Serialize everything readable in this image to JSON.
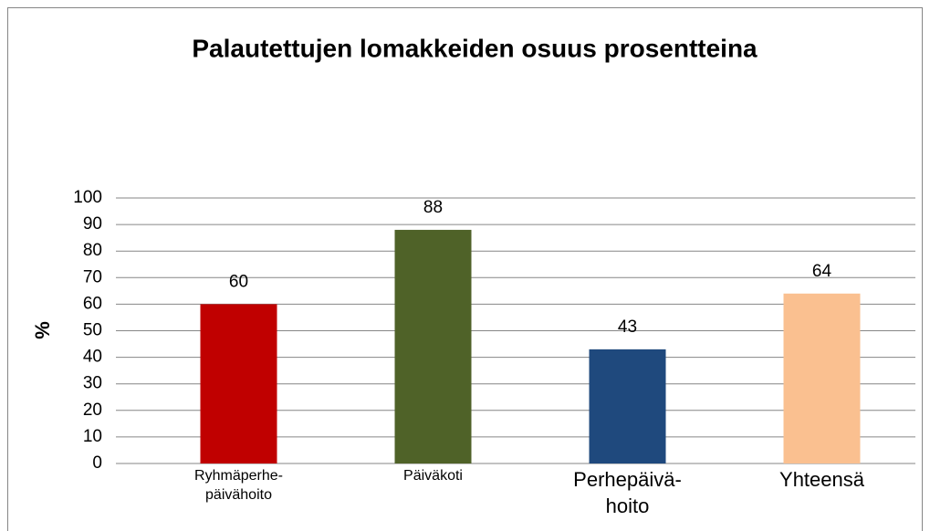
{
  "chart_data": {
    "type": "bar",
    "title": "Palautettujen lomakkeiden osuus prosentteina",
    "y_label": "%",
    "categories": [
      "Ryhmäperhe-\npäivähoito",
      "Päiväkoti",
      "Perhepäivä-\nhoito",
      "Yhteensä"
    ],
    "values": [
      60,
      88,
      43,
      64
    ],
    "colors": [
      "#c00000",
      "#4f6228",
      "#1f497d",
      "#fac090"
    ],
    "ylim": [
      0,
      100
    ],
    "yticks": [
      0,
      10,
      20,
      30,
      40,
      50,
      60,
      70,
      80,
      90,
      100
    ],
    "grid": true
  }
}
